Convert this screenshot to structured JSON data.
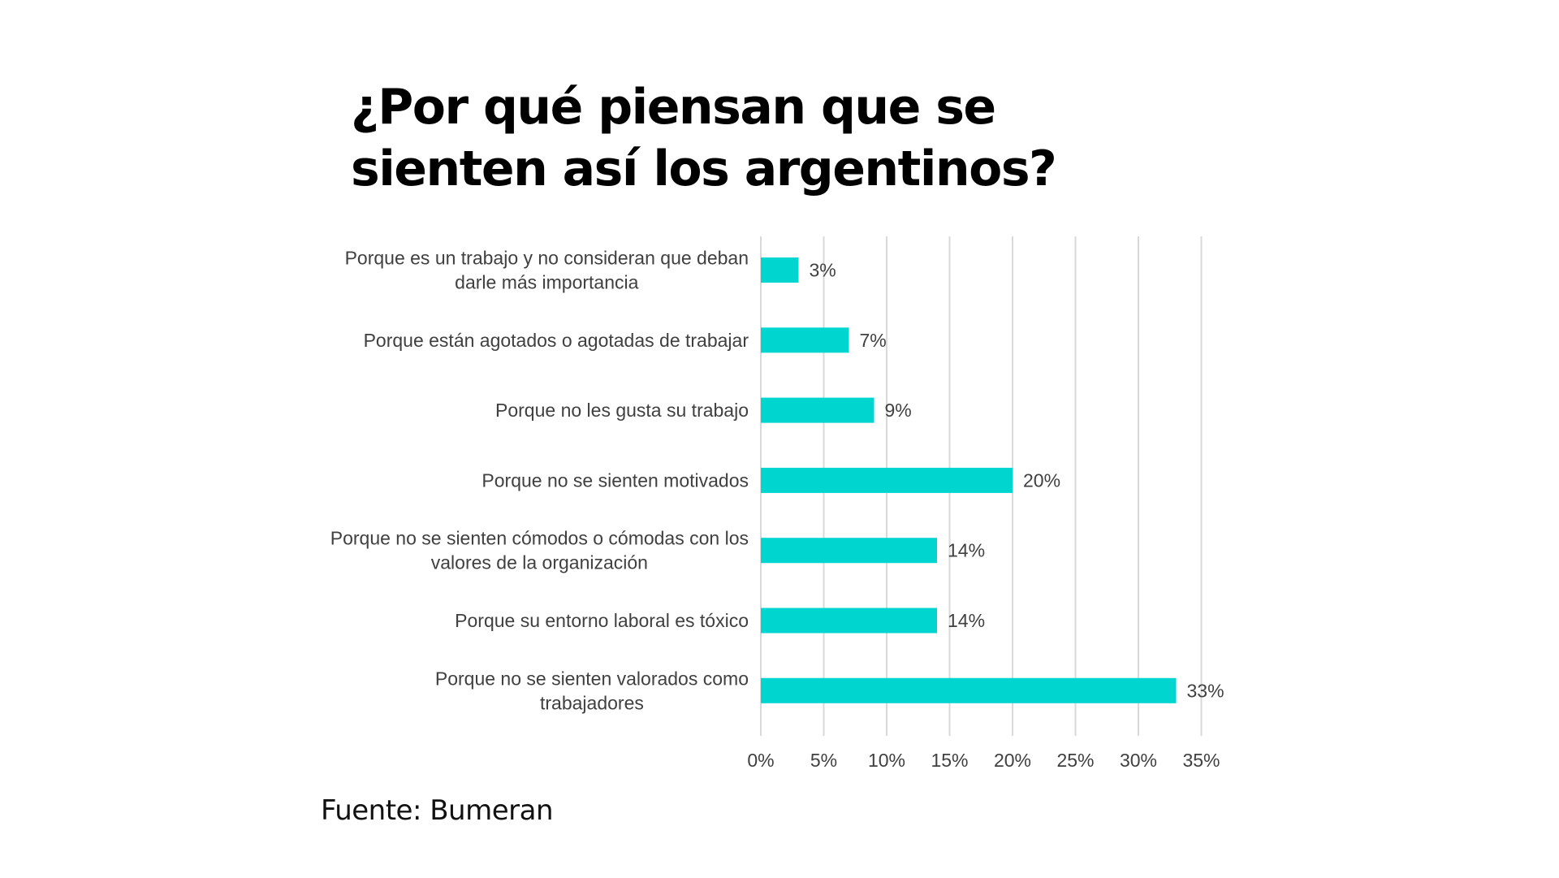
{
  "title": {
    "line1": "¿Por qué piensan que se",
    "line2": "sienten así los argentinos?"
  },
  "source": "Fuente: Bumeran",
  "colors": {
    "bar": "#00d5cf",
    "grid": "#d9d9d9",
    "text": "#404040"
  },
  "chart_data": {
    "type": "bar",
    "orientation": "horizontal",
    "title": "¿Por qué piensan que se sienten así los argentinos?",
    "xlabel": "",
    "ylabel": "",
    "xlim": [
      0,
      35
    ],
    "grid": true,
    "categories": [
      [
        "Porque es un trabajo y no consideran que deban",
        "darle más importancia"
      ],
      [
        "Porque están agotados o agotadas de trabajar"
      ],
      [
        "Porque no les gusta su trabajo"
      ],
      [
        "Porque no se sienten motivados"
      ],
      [
        "Porque no se sienten cómodos o cómodas con los",
        "valores de la organización"
      ],
      [
        "Porque su entorno laboral es tóxico"
      ],
      [
        "Porque no se sienten valorados como",
        "trabajadores"
      ]
    ],
    "values": [
      3,
      7,
      9,
      20,
      14,
      14,
      33
    ],
    "data_labels": [
      "3%",
      "7%",
      "9%",
      "20%",
      "14%",
      "14%",
      "33%"
    ],
    "x_ticks": [
      0,
      5,
      10,
      15,
      20,
      25,
      30,
      35
    ],
    "x_tick_labels": [
      "0%",
      "5%",
      "10%",
      "15%",
      "20%",
      "25%",
      "30%",
      "35%"
    ]
  }
}
